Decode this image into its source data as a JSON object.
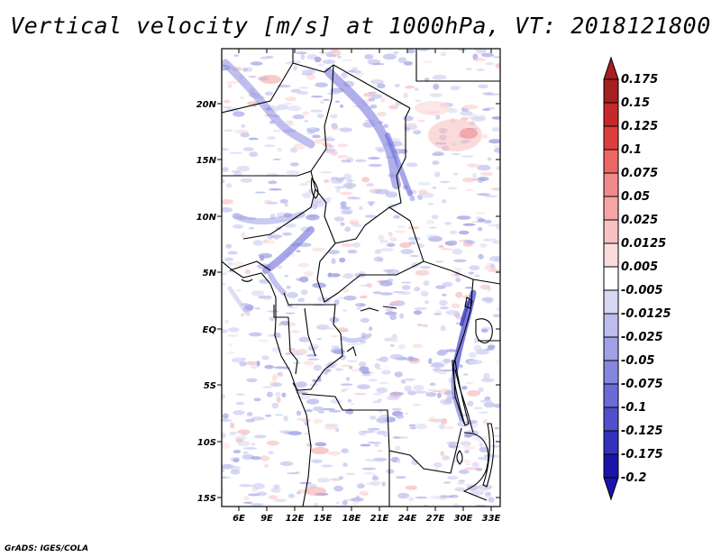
{
  "title": "Vertical velocity [m/s] at 1000hPa, VT: 2018121800",
  "credit": "GrADS: IGES/COLA",
  "map": {
    "lat_labels": [
      "20N",
      "15N",
      "10N",
      "5N",
      "EQ",
      "5S",
      "10S",
      "15S"
    ],
    "lon_labels": [
      "6E",
      "9E",
      "12E",
      "15E",
      "18E",
      "21E",
      "24E",
      "27E",
      "30E",
      "33E"
    ]
  },
  "colorbar": {
    "labels": [
      "0.175",
      "0.15",
      "0.125",
      "0.1",
      "0.075",
      "0.05",
      "0.025",
      "0.0125",
      "0.005",
      "-0.005",
      "-0.0125",
      "-0.025",
      "-0.05",
      "-0.075",
      "-0.1",
      "-0.125",
      "-0.175",
      "-0.2"
    ],
    "colors": [
      "#a51f23",
      "#c8282c",
      "#de3d3d",
      "#ec6666",
      "#f08a8a",
      "#f4a6a6",
      "#f8c2c2",
      "#fbdcdc",
      "#ffffff",
      "#d8d8f4",
      "#bcbcee",
      "#a0a0e6",
      "#8686e0",
      "#6a6ad8",
      "#5050cc",
      "#3232bc",
      "#1c14a8"
    ]
  }
}
